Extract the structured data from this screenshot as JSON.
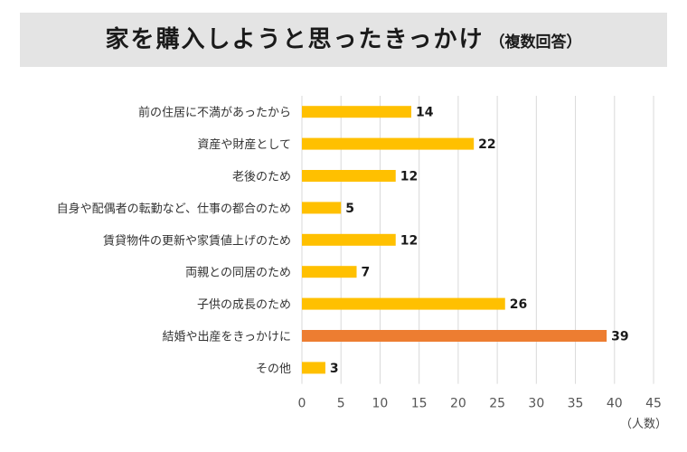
{
  "chart_data": {
    "type": "bar",
    "orientation": "horizontal",
    "title": "家を購入しようと思ったきっかけ",
    "subtitle": "（複数回答）",
    "xlabel": "（人数）",
    "ylabel": "",
    "xlim": [
      0,
      45
    ],
    "xticks": [
      0,
      5,
      10,
      15,
      20,
      25,
      30,
      35,
      40,
      45
    ],
    "grid": "vertical",
    "categories": [
      "前の住居に不満があったから",
      "資産や財産として",
      "老後のため",
      "自身や配偶者の転勤など、仕事の都合のため",
      "賃貸物件の更新や家賃値上げのため",
      "両親との同居のため",
      "子供の成長のため",
      "結婚や出産をきっかけに",
      "その他"
    ],
    "values": [
      14,
      22,
      12,
      5,
      12,
      7,
      26,
      39,
      3
    ],
    "highlight_index": 7,
    "colors": {
      "bar": "#FFC000",
      "highlight": "#ED7D31",
      "grid": "#d9d9d9",
      "title_bg": "#e4e4e4"
    }
  }
}
